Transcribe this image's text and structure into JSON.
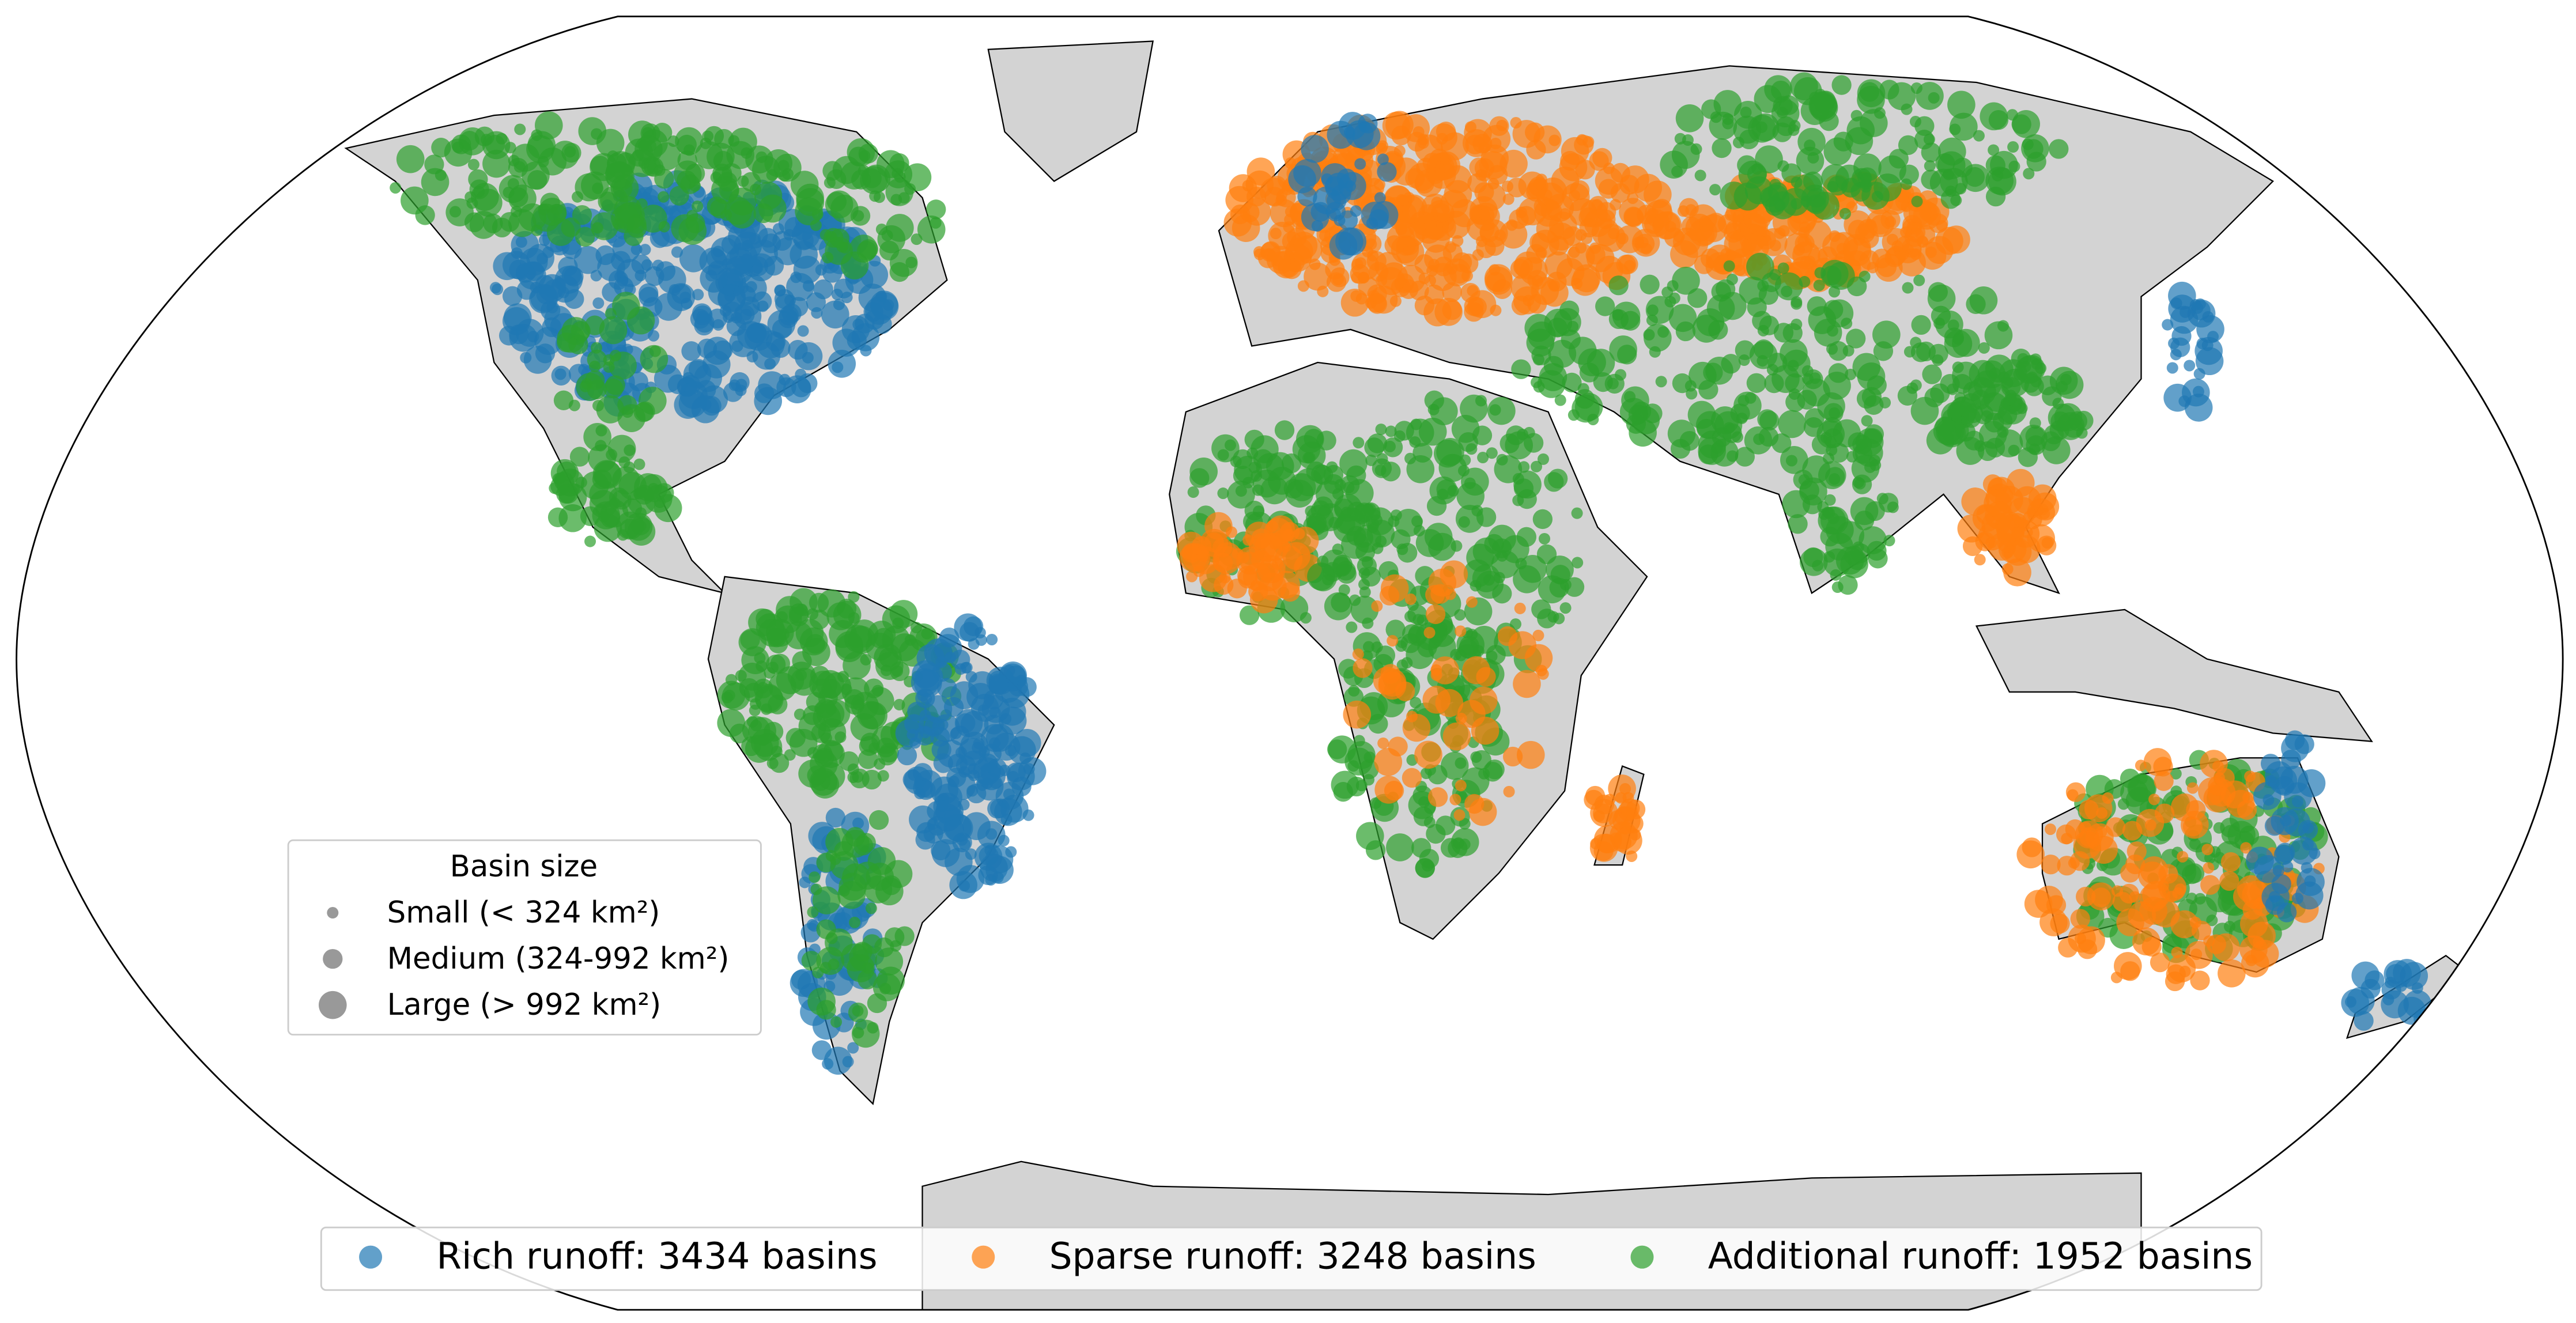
{
  "legend_size": {
    "title": "Basin size",
    "items": [
      "Small (< 324 km²)",
      "Medium (324-992 km²)",
      "Large (> 992 km²)"
    ]
  },
  "legend_runoff": {
    "items": [
      {
        "label": "Rich runoff: 3434 basins",
        "color": "#1f77b4"
      },
      {
        "label": "Sparse runoff: 3248 basins",
        "color": "#ff7f0e"
      },
      {
        "label": "Additional runoff: 1952 basins",
        "color": "#2ca02c"
      }
    ]
  }
}
